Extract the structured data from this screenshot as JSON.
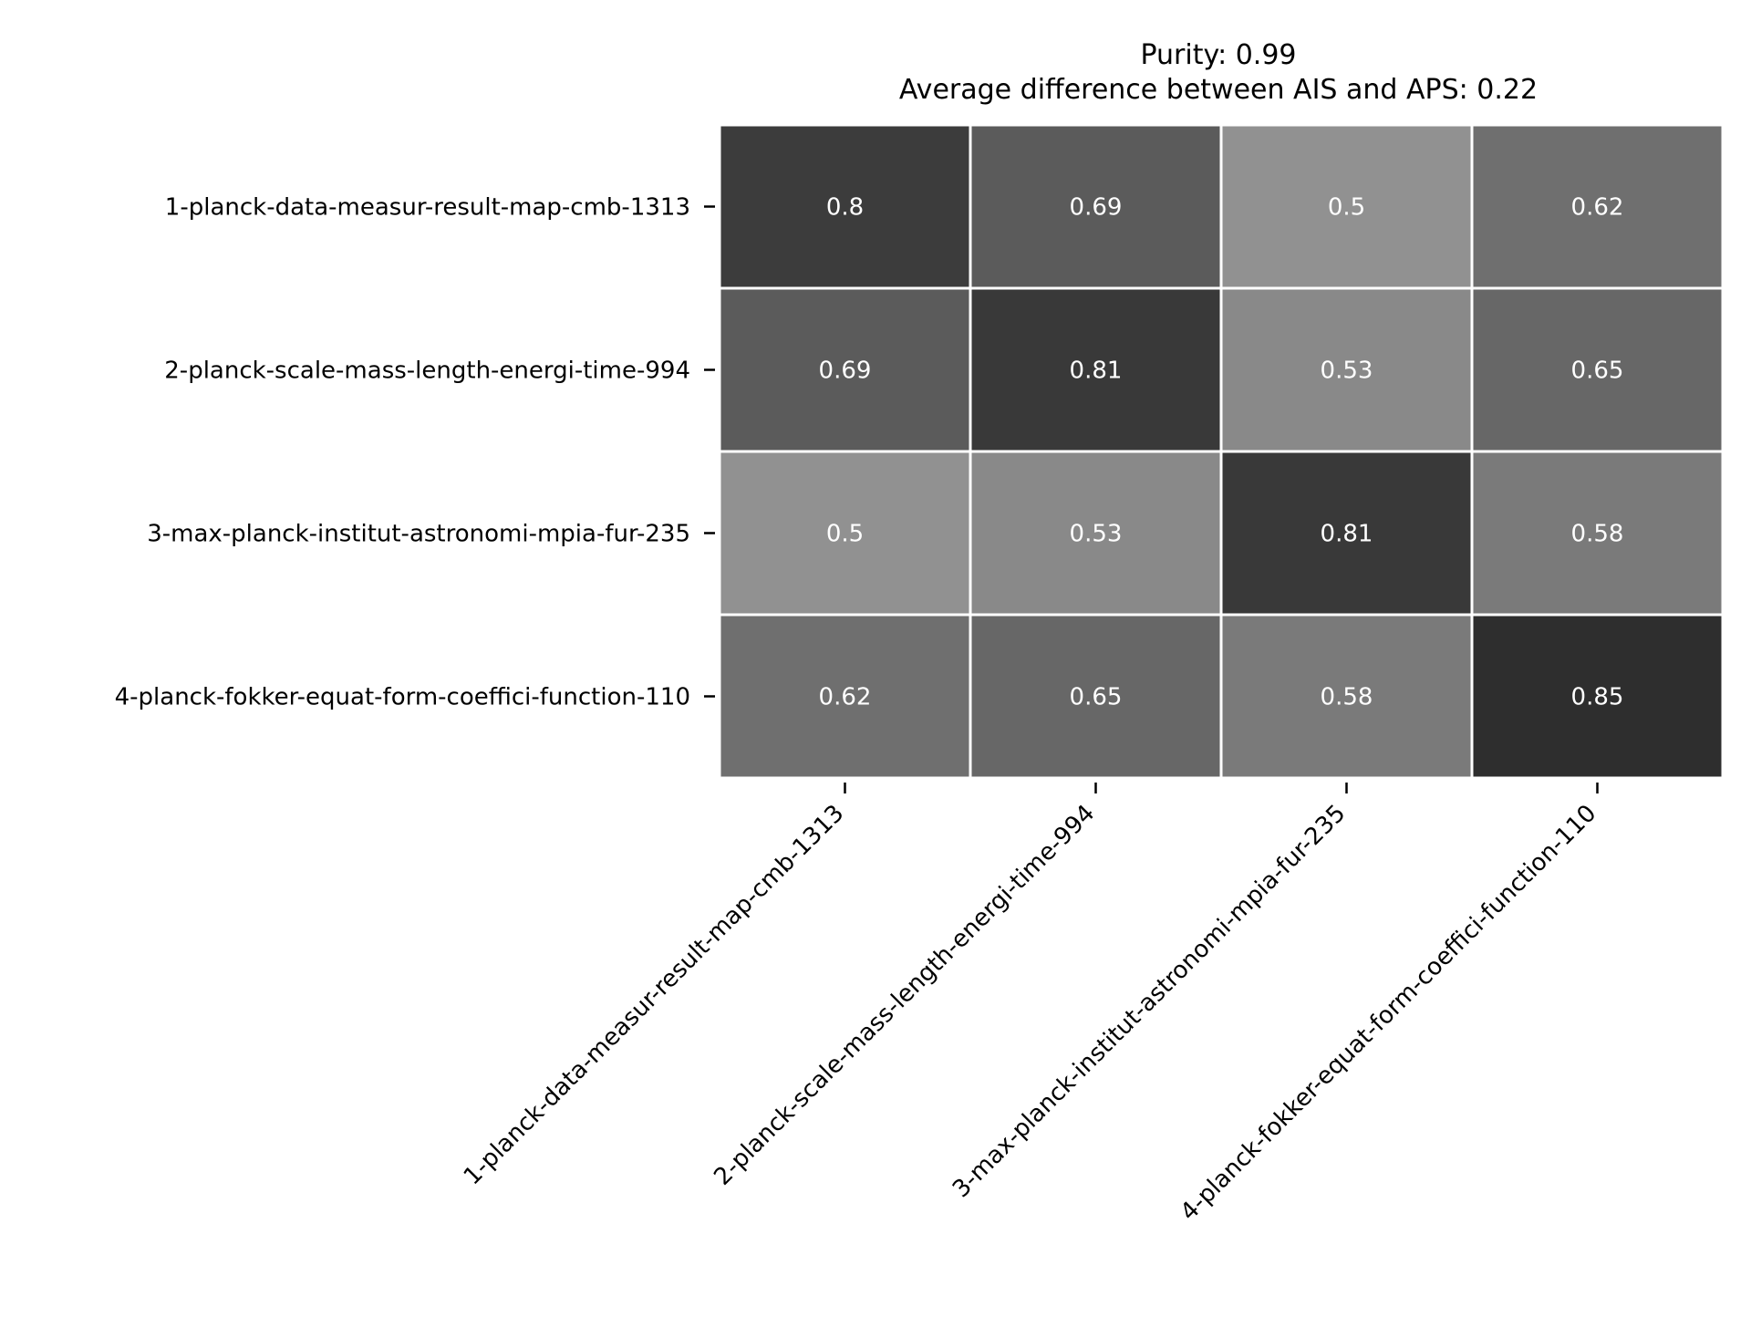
{
  "chart_data": {
    "type": "heatmap",
    "title_lines": [
      "Purity: 0.99",
      "Average difference between AIS and APS: 0.22"
    ],
    "row_labels": [
      "1-planck-data-measur-result-map-cmb-1313",
      "2-planck-scale-mass-length-energi-time-994",
      "3-max-planck-institut-astronomi-mpia-fur-235",
      "4-planck-fokker-equat-form-coeffici-function-110"
    ],
    "col_labels": [
      "1-planck-data-measur-result-map-cmb-1313",
      "2-planck-scale-mass-length-energi-time-994",
      "3-max-planck-institut-astronomi-mpia-fur-235",
      "4-planck-fokker-equat-form-coeffici-function-110"
    ],
    "values": [
      [
        0.8,
        0.69,
        0.5,
        0.62
      ],
      [
        0.69,
        0.81,
        0.53,
        0.65
      ],
      [
        0.5,
        0.53,
        0.81,
        0.58
      ],
      [
        0.62,
        0.65,
        0.58,
        0.85
      ]
    ],
    "cell_labels": [
      [
        "0.8",
        "0.69",
        "0.5",
        "0.62"
      ],
      [
        "0.69",
        "0.81",
        "0.53",
        "0.65"
      ],
      [
        "0.5",
        "0.53",
        "0.81",
        "0.58"
      ],
      [
        "0.62",
        "0.65",
        "0.58",
        "0.85"
      ]
    ],
    "colormap": "grays",
    "value_range": [
      0.5,
      0.85
    ],
    "color_range": [
      "#919191",
      "#2e2e2e"
    ],
    "cell_text_color": "#ffffff",
    "grid_line_color": "#ffffff",
    "colorbar": false,
    "xlabel": "",
    "ylabel": ""
  }
}
